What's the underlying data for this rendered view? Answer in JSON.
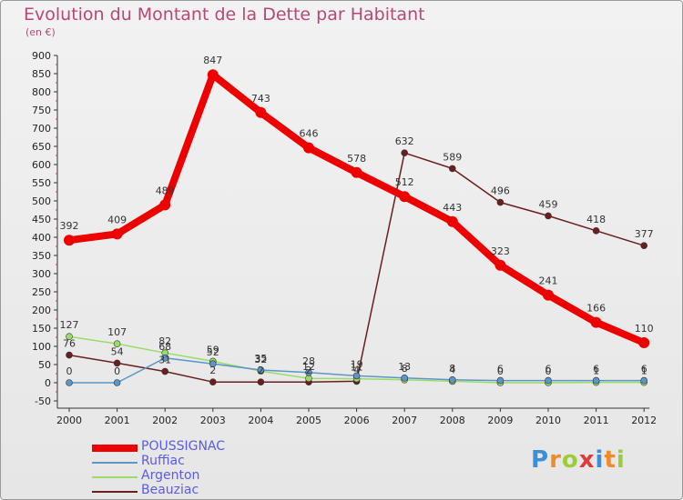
{
  "chart_data": {
    "type": "line",
    "title": "Evolution du Montant de la Dette par Habitant",
    "subtitle": "(en €)",
    "x": [
      "2000",
      "2001",
      "2002",
      "2003",
      "2004",
      "2005",
      "2006",
      "2007",
      "2008",
      "2009",
      "2010",
      "2011",
      "2012"
    ],
    "ylim": [
      -50,
      900
    ],
    "yticks": [
      -50,
      0,
      50,
      100,
      150,
      200,
      250,
      300,
      350,
      400,
      450,
      500,
      550,
      600,
      650,
      700,
      750,
      800,
      850,
      900
    ],
    "grid": false,
    "legend_position": "bottom-left",
    "series": [
      {
        "name": "POUSSIGNAC",
        "color": "#ee0000",
        "values": [
          392,
          409,
          489,
          847,
          743,
          646,
          578,
          512,
          443,
          323,
          241,
          166,
          110
        ]
      },
      {
        "name": "Ruffiac",
        "color": "#5c95c8",
        "values": [
          0,
          0,
          68,
          52,
          35,
          28,
          19,
          13,
          8,
          6,
          6,
          6,
          6
        ]
      },
      {
        "name": "Argenton",
        "color": "#99dd66",
        "values": [
          127,
          107,
          82,
          59,
          32,
          12,
          11,
          8,
          4,
          0,
          0,
          1,
          1
        ]
      },
      {
        "name": "Beauziac",
        "color": "#6b1e1e",
        "values": [
          76,
          54,
          31,
          2,
          2,
          2,
          4,
          632,
          589,
          496,
          459,
          418,
          377
        ]
      }
    ]
  },
  "logo": {
    "text": "Proxiti",
    "letters": [
      "P",
      "r",
      "o",
      "x",
      "i",
      "t",
      "i"
    ],
    "colors": [
      "#3a8fd8",
      "#f08a2a",
      "#9ccc3a",
      "#e23a3a",
      "#3a8fd8",
      "#f08a2a",
      "#9ccc3a"
    ]
  }
}
